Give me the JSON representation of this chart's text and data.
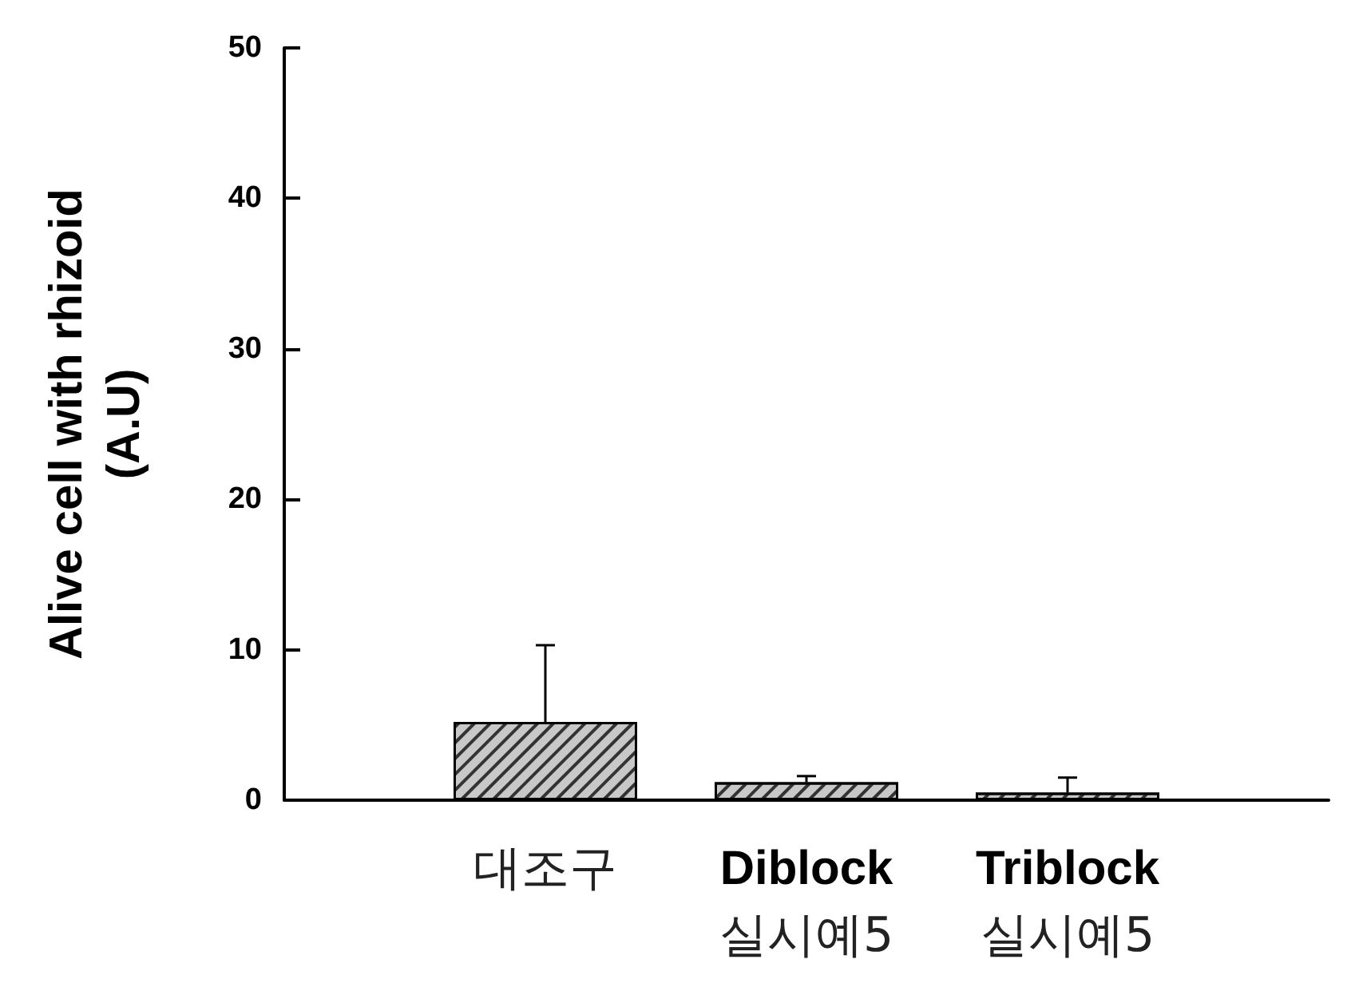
{
  "chart_data": {
    "type": "bar",
    "ylabel": "Alive cell with rhizoid\n(A.U)",
    "categories": [
      null,
      "대조구",
      "Diblock\n실시예5",
      "Triblock\n실시예5",
      null
    ],
    "values": [
      null,
      5.2,
      1.2,
      0.5,
      null
    ],
    "errors": [
      null,
      5.1,
      0.4,
      1.0,
      null
    ],
    "color": "#c8c8c8",
    "ylim": [
      0,
      50
    ],
    "yticks": [
      0,
      10,
      20,
      30,
      40,
      50
    ],
    "grid": false
  }
}
